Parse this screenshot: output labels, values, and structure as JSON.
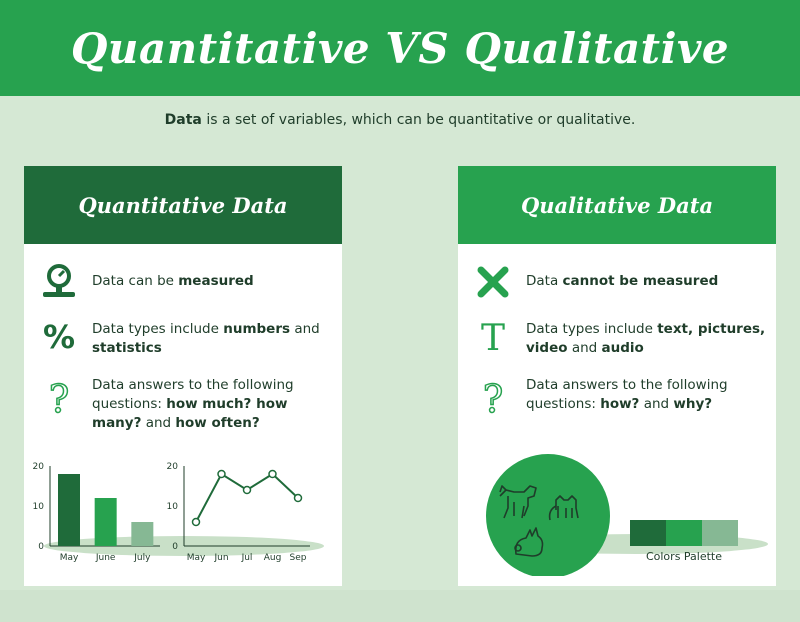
{
  "header": {
    "title": "Quantitative VS Qualitative"
  },
  "intro": {
    "bold": "Data",
    "rest": " is a set of variables, which can be quantitative or qualitative."
  },
  "quantitative": {
    "title": "Quantitative Data",
    "items": [
      {
        "icon": "gauge-icon",
        "pre": "Data can be ",
        "bold": "measured",
        "mid": "",
        "bold2": "",
        "post": ""
      },
      {
        "icon": "percent-icon",
        "pre": "Data types include ",
        "bold": "numbers",
        "mid": " and ",
        "bold2": "statistics",
        "post": ""
      },
      {
        "icon": "question-icon",
        "pre": "Data answers to the following questions: ",
        "bold": "how much? how many?",
        "mid": " and ",
        "bold2": "how often?",
        "post": ""
      }
    ]
  },
  "qualitative": {
    "title": "Qualitative Data",
    "items": [
      {
        "icon": "cross-icon",
        "pre": "Data ",
        "bold": "cannot be measured",
        "mid": "",
        "bold2": "",
        "post": ""
      },
      {
        "icon": "text-icon",
        "pre": "Data types include ",
        "bold": "text, pictures, video",
        "mid": " and ",
        "bold2": "audio",
        "post": ""
      },
      {
        "icon": "question-icon",
        "pre": "Data answers to the following questions: ",
        "bold": "how?",
        "mid": " and ",
        "bold2": "why?",
        "post": ""
      }
    ],
    "animals": [
      "dog-icon",
      "cat-icon",
      "rabbit-icon"
    ],
    "palette": {
      "label": "Colors Palette",
      "colors": [
        "#1f6b3a",
        "#27a24f",
        "#86b894"
      ]
    }
  },
  "chart_data": [
    {
      "type": "bar",
      "categories": [
        "May",
        "June",
        "July"
      ],
      "values": [
        18,
        12,
        6
      ],
      "colors": [
        "#1f6b3a",
        "#27a24f",
        "#86b894"
      ],
      "ylim": [
        0,
        20
      ],
      "yticks": [
        0,
        10,
        20
      ]
    },
    {
      "type": "line",
      "categories": [
        "May",
        "Jun",
        "Jul",
        "Aug",
        "Sep"
      ],
      "values": [
        6,
        18,
        14,
        18,
        12
      ],
      "color": "#1f6b3a",
      "ylim": [
        0,
        20
      ],
      "yticks": [
        0,
        10,
        20
      ]
    }
  ]
}
